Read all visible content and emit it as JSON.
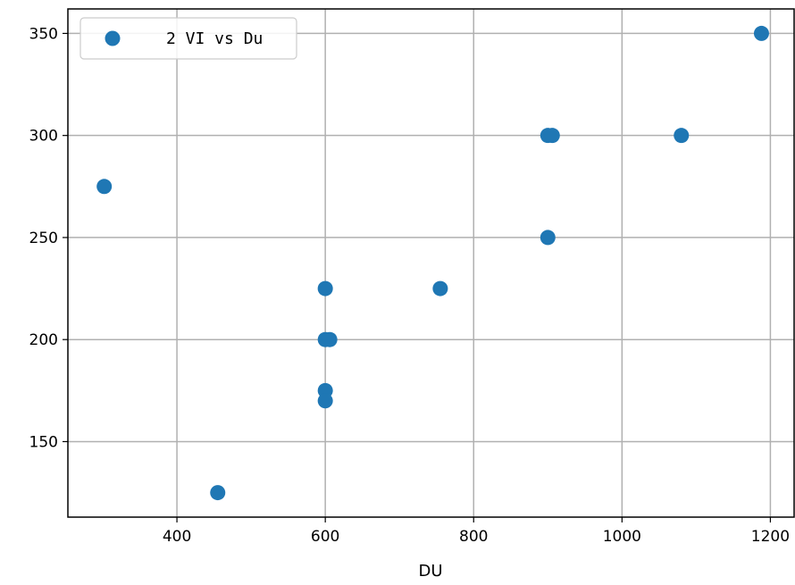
{
  "chart_data": {
    "type": "scatter",
    "title": "",
    "xlabel": "DU",
    "ylabel": "",
    "xlim": [
      253,
      1232
    ],
    "ylim": [
      113,
      362
    ],
    "xticks": [
      400,
      600,
      800,
      1000,
      1200
    ],
    "yticks": [
      150,
      200,
      250,
      300,
      350
    ],
    "grid": true,
    "legend_position": "upper-left",
    "series": [
      {
        "name": "2 VI vs Du",
        "color": "#1f77b4",
        "points": [
          {
            "x": 302,
            "y": 275
          },
          {
            "x": 455,
            "y": 125
          },
          {
            "x": 600,
            "y": 225
          },
          {
            "x": 600,
            "y": 200
          },
          {
            "x": 606,
            "y": 200
          },
          {
            "x": 600,
            "y": 175
          },
          {
            "x": 600,
            "y": 170
          },
          {
            "x": 755,
            "y": 225
          },
          {
            "x": 900,
            "y": 300
          },
          {
            "x": 906,
            "y": 300
          },
          {
            "x": 900,
            "y": 250
          },
          {
            "x": 1080,
            "y": 300
          },
          {
            "x": 1188,
            "y": 350
          }
        ]
      }
    ]
  }
}
